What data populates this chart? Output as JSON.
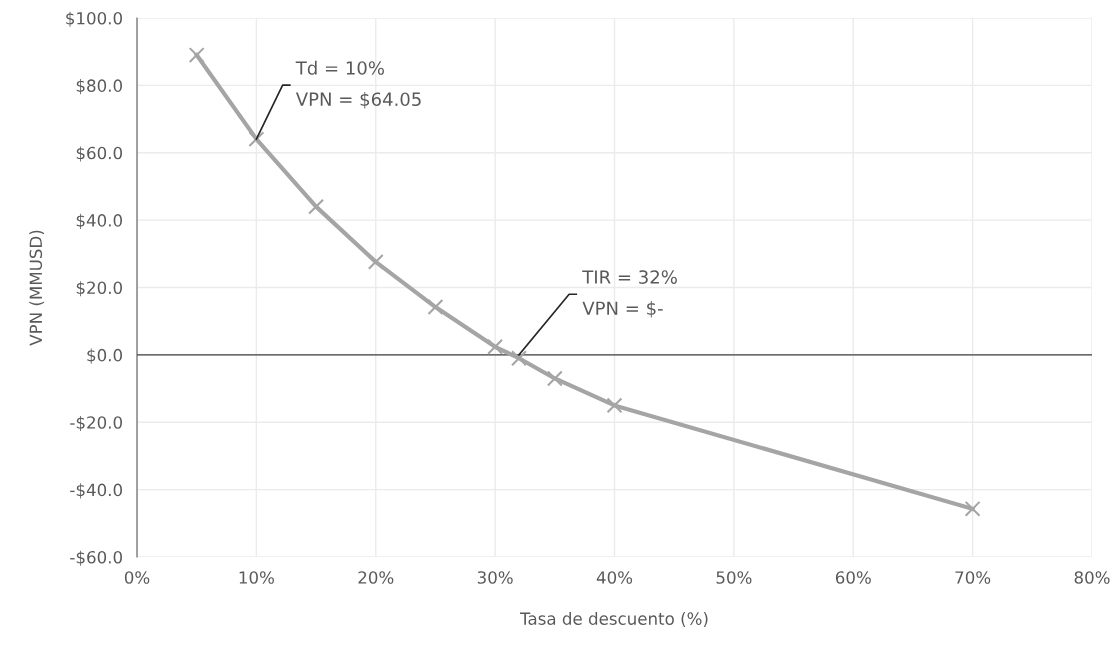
{
  "chart_data": {
    "type": "line",
    "xlabel": "Tasa de descuento (%)",
    "ylabel": "VPN (MMUSD)",
    "series": [
      {
        "color": "#a5a5a5",
        "x": [
          5,
          10,
          15,
          20,
          25,
          30,
          32,
          35,
          40,
          70
        ],
        "values": [
          89,
          64.05,
          44,
          27.6,
          14.2,
          2.4,
          -1,
          -7,
          -15,
          -45.7
        ]
      }
    ],
    "xlim": [
      0,
      80
    ],
    "ylim": [
      -60,
      100
    ],
    "xticks": [
      {
        "value": 0,
        "label": "0%"
      },
      {
        "value": 10,
        "label": "10%"
      },
      {
        "value": 20,
        "label": "20%"
      },
      {
        "value": 30,
        "label": "30%"
      },
      {
        "value": 40,
        "label": "40%"
      },
      {
        "value": 50,
        "label": "50%"
      },
      {
        "value": 60,
        "label": "60%"
      },
      {
        "value": 70,
        "label": "70%"
      },
      {
        "value": 80,
        "label": "80%"
      }
    ],
    "yticks": [
      {
        "value": -60,
        "label": "-$60.0"
      },
      {
        "value": -40,
        "label": "-$40.0"
      },
      {
        "value": -20,
        "label": "-$20.0"
      },
      {
        "value": 0,
        "label": "$0.0"
      },
      {
        "value": 20,
        "label": "$20.0"
      },
      {
        "value": 40,
        "label": "$40.0"
      },
      {
        "value": 60,
        "label": "$60.0"
      },
      {
        "value": 80,
        "label": "$80.0"
      },
      {
        "value": 100,
        "label": "$100.0"
      }
    ],
    "ref_lines": [
      {
        "axis": "y",
        "value": 0,
        "color": "#404040"
      }
    ],
    "annotations": [
      {
        "text": "Td = 10%\nVPN = $64.05",
        "x": 10,
        "y": 64.05
      },
      {
        "text": "TIR = 32%\nVPN = $-",
        "x": 32,
        "y": 0
      }
    ],
    "grid": true,
    "marker": "cross",
    "line_style": "solid"
  }
}
